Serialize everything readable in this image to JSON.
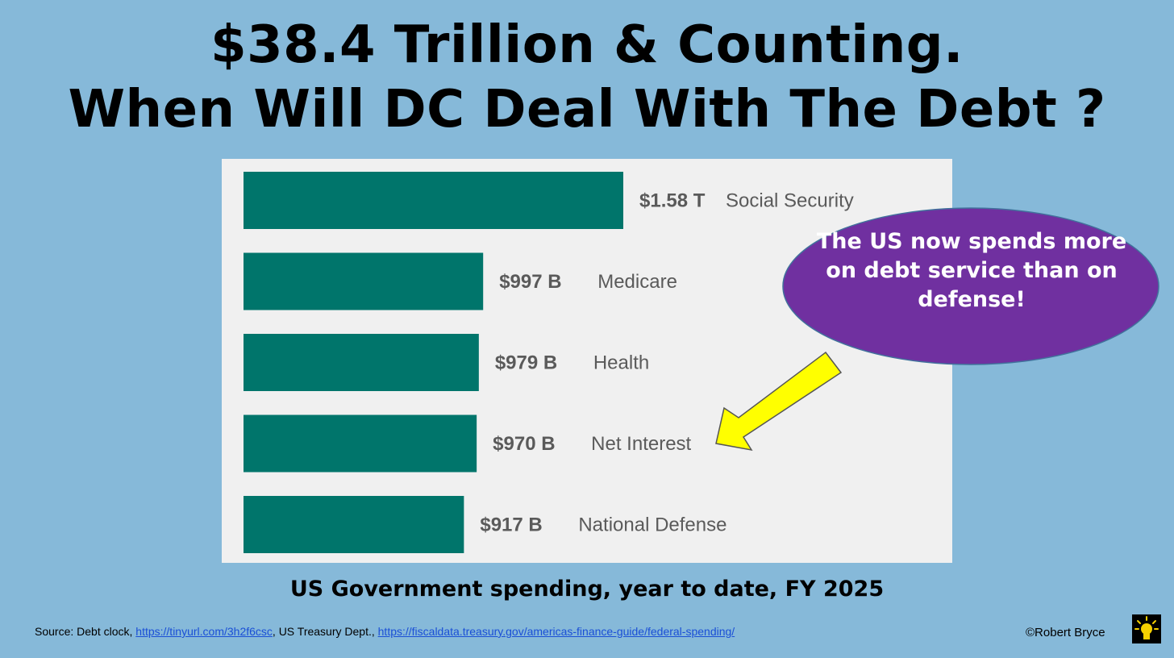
{
  "title": {
    "line1": "$38.4 Trillion & Counting.",
    "line2": "When Will DC Deal With  The Debt ?"
  },
  "chart_data": {
    "type": "bar",
    "orientation": "horizontal",
    "title": "US Government spending, year to date, FY 2025",
    "categories": [
      "Social Security",
      "Medicare",
      "Health",
      "Net Interest",
      "National Defense"
    ],
    "values": [
      1580,
      997,
      979,
      970,
      917
    ],
    "units": "billions USD",
    "value_labels": [
      "$1.58 T",
      "$997 B",
      "$979 B",
      "$970 B",
      "$917 B"
    ],
    "bar_color": "#00756b",
    "grid": false
  },
  "callout": {
    "text": "The US now spends more on debt service than on defense!",
    "color": "#7030a0",
    "arrow_color": "#ffff00"
  },
  "source": {
    "prefix": "Source: Debt clock, ",
    "link1": "https://tinyurl.com/3h2f6csc",
    "middle": ",  US Treasury Dept., ",
    "link2": "https://fiscaldata.treasury.gov/americas-finance-guide/federal-spending/"
  },
  "copyright": "©Robert Bryce",
  "icons": {
    "logo": "lightbulb-icon"
  }
}
